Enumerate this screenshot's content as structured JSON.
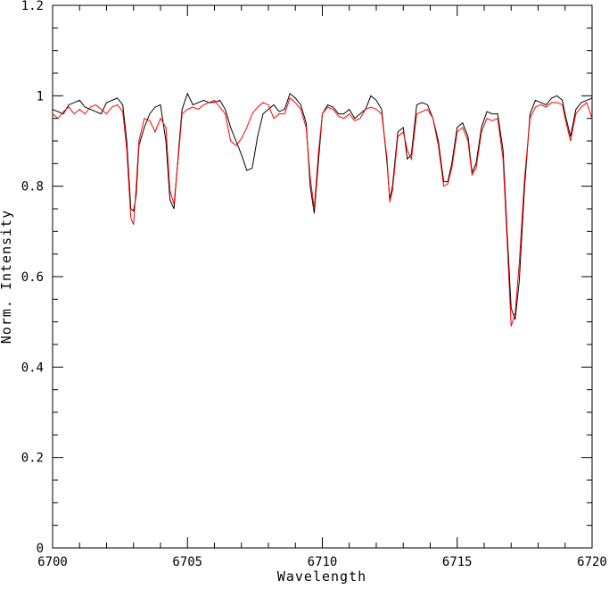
{
  "chart_data": {
    "type": "line",
    "xlabel": "Wavelength",
    "ylabel": "Norm. Intensity",
    "xlim": [
      6700,
      6720
    ],
    "ylim": [
      0,
      1.2
    ],
    "x_ticks": [
      "6700",
      "6705",
      "6710",
      "6715",
      "6720"
    ],
    "y_ticks": [
      "0",
      "0.2",
      "0.4",
      "0.6",
      "0.8",
      "1",
      "1.2"
    ],
    "grid": false,
    "series": [
      {
        "color": "#000000",
        "x": [
          6700.0,
          6700.2,
          6700.4,
          6700.6,
          6700.8,
          6701.0,
          6701.2,
          6701.4,
          6701.6,
          6701.8,
          6702.0,
          6702.2,
          6702.4,
          6702.6,
          6702.75,
          6702.9,
          6703.0,
          6703.1,
          6703.2,
          6703.4,
          6703.6,
          6703.8,
          6704.0,
          6704.2,
          6704.35,
          6704.5,
          6704.7,
          6704.8,
          6705.0,
          6705.2,
          6705.4,
          6705.6,
          6705.8,
          6706.0,
          6706.2,
          6706.4,
          6706.6,
          6706.8,
          6707.0,
          6707.2,
          6707.4,
          6707.6,
          6707.8,
          6708.0,
          6708.2,
          6708.4,
          6708.6,
          6708.8,
          6709.0,
          6709.2,
          6709.4,
          6709.55,
          6709.7,
          6709.85,
          6710.0,
          6710.2,
          6710.4,
          6710.6,
          6710.8,
          6711.0,
          6711.2,
          6711.4,
          6711.6,
          6711.8,
          6712.0,
          6712.2,
          6712.4,
          6712.5,
          6712.6,
          6712.8,
          6713.0,
          6713.15,
          6713.3,
          6713.5,
          6713.7,
          6713.9,
          6714.1,
          6714.3,
          6714.5,
          6714.65,
          6714.8,
          6715.0,
          6715.2,
          6715.4,
          6715.55,
          6715.7,
          6715.9,
          6716.1,
          6716.3,
          6716.5,
          6716.7,
          6716.85,
          6717.0,
          6717.15,
          6717.3,
          6717.5,
          6717.7,
          6717.9,
          6718.1,
          6718.3,
          6718.5,
          6718.7,
          6718.9,
          6719.0,
          6719.2,
          6719.4,
          6719.6,
          6719.8,
          6720.0
        ],
        "y": [
          0.97,
          0.965,
          0.96,
          0.98,
          0.985,
          0.99,
          0.975,
          0.97,
          0.965,
          0.96,
          0.985,
          0.99,
          0.995,
          0.98,
          0.9,
          0.75,
          0.745,
          0.78,
          0.89,
          0.93,
          0.96,
          0.975,
          0.98,
          0.9,
          0.77,
          0.75,
          0.9,
          0.97,
          1.005,
          0.98,
          0.985,
          0.99,
          0.985,
          0.985,
          0.99,
          0.97,
          0.93,
          0.9,
          0.87,
          0.835,
          0.84,
          0.91,
          0.96,
          0.97,
          0.98,
          0.965,
          0.97,
          1.005,
          0.995,
          0.98,
          0.94,
          0.8,
          0.74,
          0.85,
          0.96,
          0.98,
          0.975,
          0.96,
          0.96,
          0.97,
          0.95,
          0.96,
          0.97,
          1.0,
          0.99,
          0.97,
          0.85,
          0.77,
          0.8,
          0.92,
          0.93,
          0.86,
          0.87,
          0.98,
          0.985,
          0.98,
          0.95,
          0.9,
          0.81,
          0.81,
          0.85,
          0.93,
          0.94,
          0.91,
          0.83,
          0.85,
          0.93,
          0.965,
          0.96,
          0.96,
          0.88,
          0.7,
          0.53,
          0.505,
          0.59,
          0.8,
          0.96,
          0.99,
          0.985,
          0.98,
          0.995,
          1.0,
          0.99,
          0.96,
          0.91,
          0.97,
          0.985,
          0.99,
          0.995
        ]
      },
      {
        "color": "#ff0000",
        "x": [
          6700.0,
          6700.2,
          6700.4,
          6700.6,
          6700.8,
          6701.0,
          6701.2,
          6701.4,
          6701.6,
          6701.8,
          6702.0,
          6702.2,
          6702.4,
          6702.6,
          6702.75,
          6702.9,
          6703.0,
          6703.1,
          6703.2,
          6703.4,
          6703.6,
          6703.8,
          6704.0,
          6704.2,
          6704.35,
          6704.5,
          6704.7,
          6704.8,
          6705.0,
          6705.2,
          6705.4,
          6705.6,
          6705.8,
          6706.0,
          6706.2,
          6706.4,
          6706.6,
          6706.8,
          6707.0,
          6707.2,
          6707.4,
          6707.6,
          6707.8,
          6708.0,
          6708.2,
          6708.4,
          6708.6,
          6708.8,
          6709.0,
          6709.2,
          6709.4,
          6709.55,
          6709.7,
          6709.85,
          6710.0,
          6710.2,
          6710.4,
          6710.6,
          6710.8,
          6711.0,
          6711.2,
          6711.4,
          6711.6,
          6711.8,
          6712.0,
          6712.2,
          6712.4,
          6712.5,
          6712.6,
          6712.8,
          6713.0,
          6713.15,
          6713.3,
          6713.5,
          6713.7,
          6713.9,
          6714.1,
          6714.3,
          6714.5,
          6714.65,
          6714.8,
          6715.0,
          6715.2,
          6715.4,
          6715.55,
          6715.7,
          6715.9,
          6716.1,
          6716.3,
          6716.5,
          6716.7,
          6716.85,
          6717.0,
          6717.15,
          6717.3,
          6717.5,
          6717.7,
          6717.9,
          6718.1,
          6718.3,
          6718.5,
          6718.7,
          6718.9,
          6719.0,
          6719.2,
          6719.4,
          6719.6,
          6719.8,
          6720.0
        ],
        "y": [
          0.96,
          0.95,
          0.965,
          0.975,
          0.96,
          0.97,
          0.96,
          0.975,
          0.98,
          0.97,
          0.96,
          0.975,
          0.98,
          0.965,
          0.88,
          0.73,
          0.715,
          0.8,
          0.9,
          0.95,
          0.945,
          0.92,
          0.95,
          0.93,
          0.79,
          0.76,
          0.89,
          0.96,
          0.97,
          0.975,
          0.97,
          0.98,
          0.985,
          0.99,
          0.975,
          0.96,
          0.9,
          0.89,
          0.905,
          0.93,
          0.96,
          0.975,
          0.985,
          0.98,
          0.95,
          0.96,
          0.96,
          0.995,
          0.985,
          0.97,
          0.93,
          0.82,
          0.75,
          0.87,
          0.96,
          0.975,
          0.97,
          0.955,
          0.95,
          0.96,
          0.945,
          0.95,
          0.97,
          0.975,
          0.97,
          0.96,
          0.86,
          0.765,
          0.79,
          0.91,
          0.92,
          0.88,
          0.86,
          0.96,
          0.965,
          0.97,
          0.95,
          0.89,
          0.8,
          0.805,
          0.84,
          0.92,
          0.93,
          0.9,
          0.825,
          0.84,
          0.92,
          0.95,
          0.945,
          0.95,
          0.86,
          0.68,
          0.49,
          0.52,
          0.63,
          0.82,
          0.95,
          0.975,
          0.98,
          0.975,
          0.985,
          0.985,
          0.98,
          0.95,
          0.9,
          0.96,
          0.975,
          0.985,
          0.95
        ]
      }
    ]
  }
}
